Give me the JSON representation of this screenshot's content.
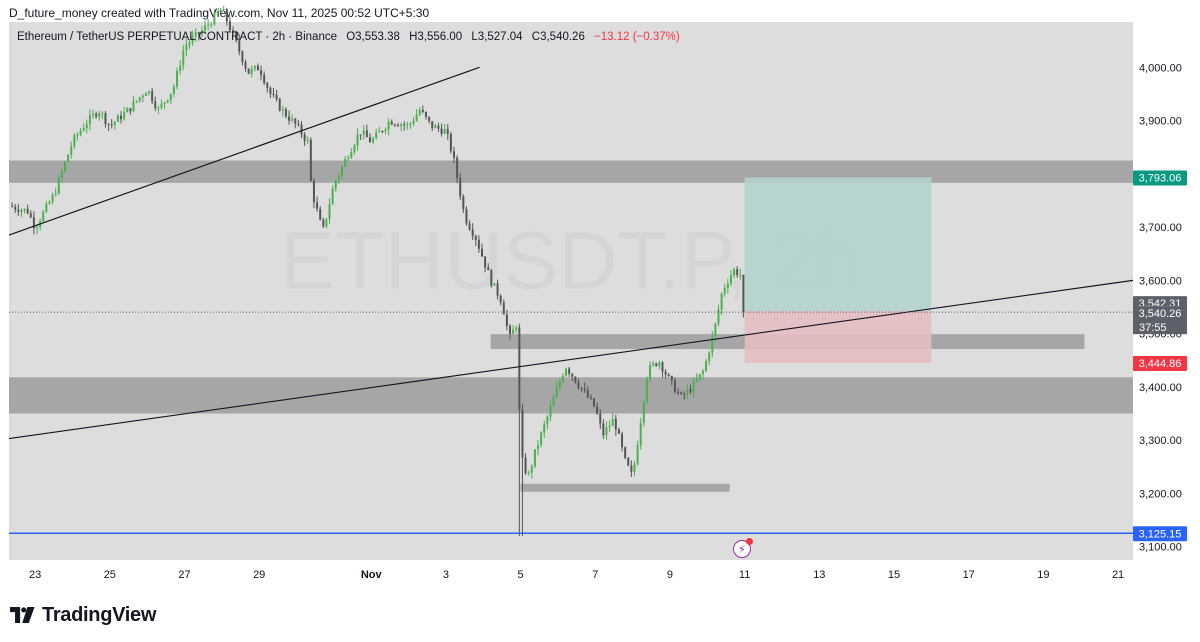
{
  "header": {
    "text": "D_future_money created with TradingView.com, Nov 11, 2025 00:52 UTC+5:30"
  },
  "legend": {
    "symbol": "Ethereum / TetherUS PERPETUAL CONTRACT · 2h · Binance",
    "o_label": "O",
    "o_value": "3,553.38",
    "h_label": "H",
    "h_value": "3,556.00",
    "l_label": "L",
    "l_value": "3,527.04",
    "c_label": "C",
    "c_value": "3,540.26",
    "change": "−13.12 (−0.37%)"
  },
  "watermark": "ETHUSDT.P, 2h",
  "brand": {
    "name": "TradingView"
  },
  "colors": {
    "up": "#4caf50",
    "down": "#555555",
    "zone": "#a6a6a6",
    "target": "#b2d4cc",
    "stop": "#e6bcc2",
    "blue_line": "#2962ff",
    "label_green": "#089981",
    "label_red": "#f23645",
    "label_gray": "#5d606b"
  },
  "chart_data": {
    "type": "candlestick",
    "timeframe": "2h",
    "y_axis": {
      "ticks": [
        "4,000.00",
        "3,900.00",
        "3,800.00",
        "3,700.00",
        "3,600.00",
        "3,500.00",
        "3,400.00",
        "3,300.00",
        "3,200.00",
        "3,100.00"
      ],
      "range": [
        3075,
        4085
      ]
    },
    "x_axis": {
      "ticks": [
        "23",
        "25",
        "27",
        "29",
        "Nov",
        "3",
        "5",
        "7",
        "9",
        "11",
        "13",
        "15",
        "17",
        "19",
        "21"
      ],
      "tick_days": [
        23,
        25,
        27,
        29,
        32,
        34,
        36,
        38,
        40,
        42,
        44,
        46,
        48,
        50,
        52
      ],
      "day_range": [
        22.3,
        52.4
      ],
      "day_basis": "days counted from Oct 1, Nov 1 = 32"
    },
    "price_path": [
      [
        22.3,
        3740
      ],
      [
        22.8,
        3730
      ],
      [
        23.0,
        3700
      ],
      [
        23.5,
        3760
      ],
      [
        24.0,
        3860
      ],
      [
        24.3,
        3890
      ],
      [
        24.7,
        3920
      ],
      [
        25.0,
        3890
      ],
      [
        25.5,
        3920
      ],
      [
        26.0,
        3960
      ],
      [
        26.3,
        3920
      ],
      [
        26.7,
        3960
      ],
      [
        27.0,
        4040
      ],
      [
        27.5,
        4070
      ],
      [
        28.0,
        4110
      ],
      [
        28.3,
        4060
      ],
      [
        28.7,
        3990
      ],
      [
        29.0,
        4000
      ],
      [
        29.3,
        3950
      ],
      [
        29.6,
        3920
      ],
      [
        30.0,
        3890
      ],
      [
        30.3,
        3860
      ],
      [
        30.4,
        3770
      ],
      [
        30.7,
        3690
      ],
      [
        31.0,
        3780
      ],
      [
        31.4,
        3840
      ],
      [
        31.7,
        3880
      ],
      [
        32.0,
        3860
      ],
      [
        32.5,
        3900
      ],
      [
        33.0,
        3890
      ],
      [
        33.3,
        3920
      ],
      [
        33.6,
        3890
      ],
      [
        34.0,
        3880
      ],
      [
        34.2,
        3830
      ],
      [
        34.5,
        3720
      ],
      [
        34.8,
        3680
      ],
      [
        35.2,
        3600
      ],
      [
        35.5,
        3560
      ],
      [
        35.7,
        3490
      ],
      [
        35.9,
        3520
      ],
      [
        36.0,
        3270
      ],
      [
        36.2,
        3230
      ],
      [
        36.4,
        3280
      ],
      [
        36.7,
        3340
      ],
      [
        37.0,
        3400
      ],
      [
        37.2,
        3440
      ],
      [
        37.5,
        3410
      ],
      [
        37.8,
        3380
      ],
      [
        38.0,
        3360
      ],
      [
        38.2,
        3310
      ],
      [
        38.5,
        3340
      ],
      [
        38.8,
        3260
      ],
      [
        39.0,
        3230
      ],
      [
        39.2,
        3330
      ],
      [
        39.4,
        3430
      ],
      [
        39.7,
        3450
      ],
      [
        40.0,
        3410
      ],
      [
        40.3,
        3380
      ],
      [
        40.6,
        3400
      ],
      [
        40.9,
        3430
      ],
      [
        41.2,
        3510
      ],
      [
        41.4,
        3580
      ],
      [
        41.7,
        3620
      ],
      [
        41.9,
        3610
      ],
      [
        42.0,
        3540.26
      ]
    ],
    "zones": [
      {
        "from": 3783,
        "to": 3825,
        "day_start": 22.3,
        "day_end": 52.4
      },
      {
        "from": 3471,
        "to": 3499,
        "day_start": 35.2,
        "day_end": 51.1
      },
      {
        "from": 3350,
        "to": 3418,
        "day_start": 22.3,
        "day_end": 52.4
      },
      {
        "from": 3203,
        "to": 3218,
        "day_start": 36.0,
        "day_end": 41.6
      }
    ],
    "trendlines": [
      {
        "from": [
          22.3,
          3685
        ],
        "to": [
          34.9,
          4000
        ]
      },
      {
        "from": [
          22.3,
          3303
        ],
        "to": [
          52.4,
          3600
        ]
      }
    ],
    "position": {
      "entry": 3542.31,
      "target": 3793.06,
      "stop": 3444.86,
      "day_start": 42.0,
      "day_end": 47.0
    },
    "horizontal_line": 3125.15,
    "last_price": 3540.26,
    "countdown": "37:55",
    "price_labels": [
      {
        "value": "3,793.06",
        "price": 3793.06,
        "color": "#089981"
      },
      {
        "value": "3,542.31",
        "price": 3542.31,
        "color": "#5d606b"
      },
      {
        "value": "3,540.26",
        "price": 3540.26,
        "color": "#5d606b"
      },
      {
        "value": "3,444.86",
        "price": 3444.86,
        "color": "#f23645"
      },
      {
        "value": "3,125.15",
        "price": 3125.15,
        "color": "#2962ff"
      }
    ]
  }
}
